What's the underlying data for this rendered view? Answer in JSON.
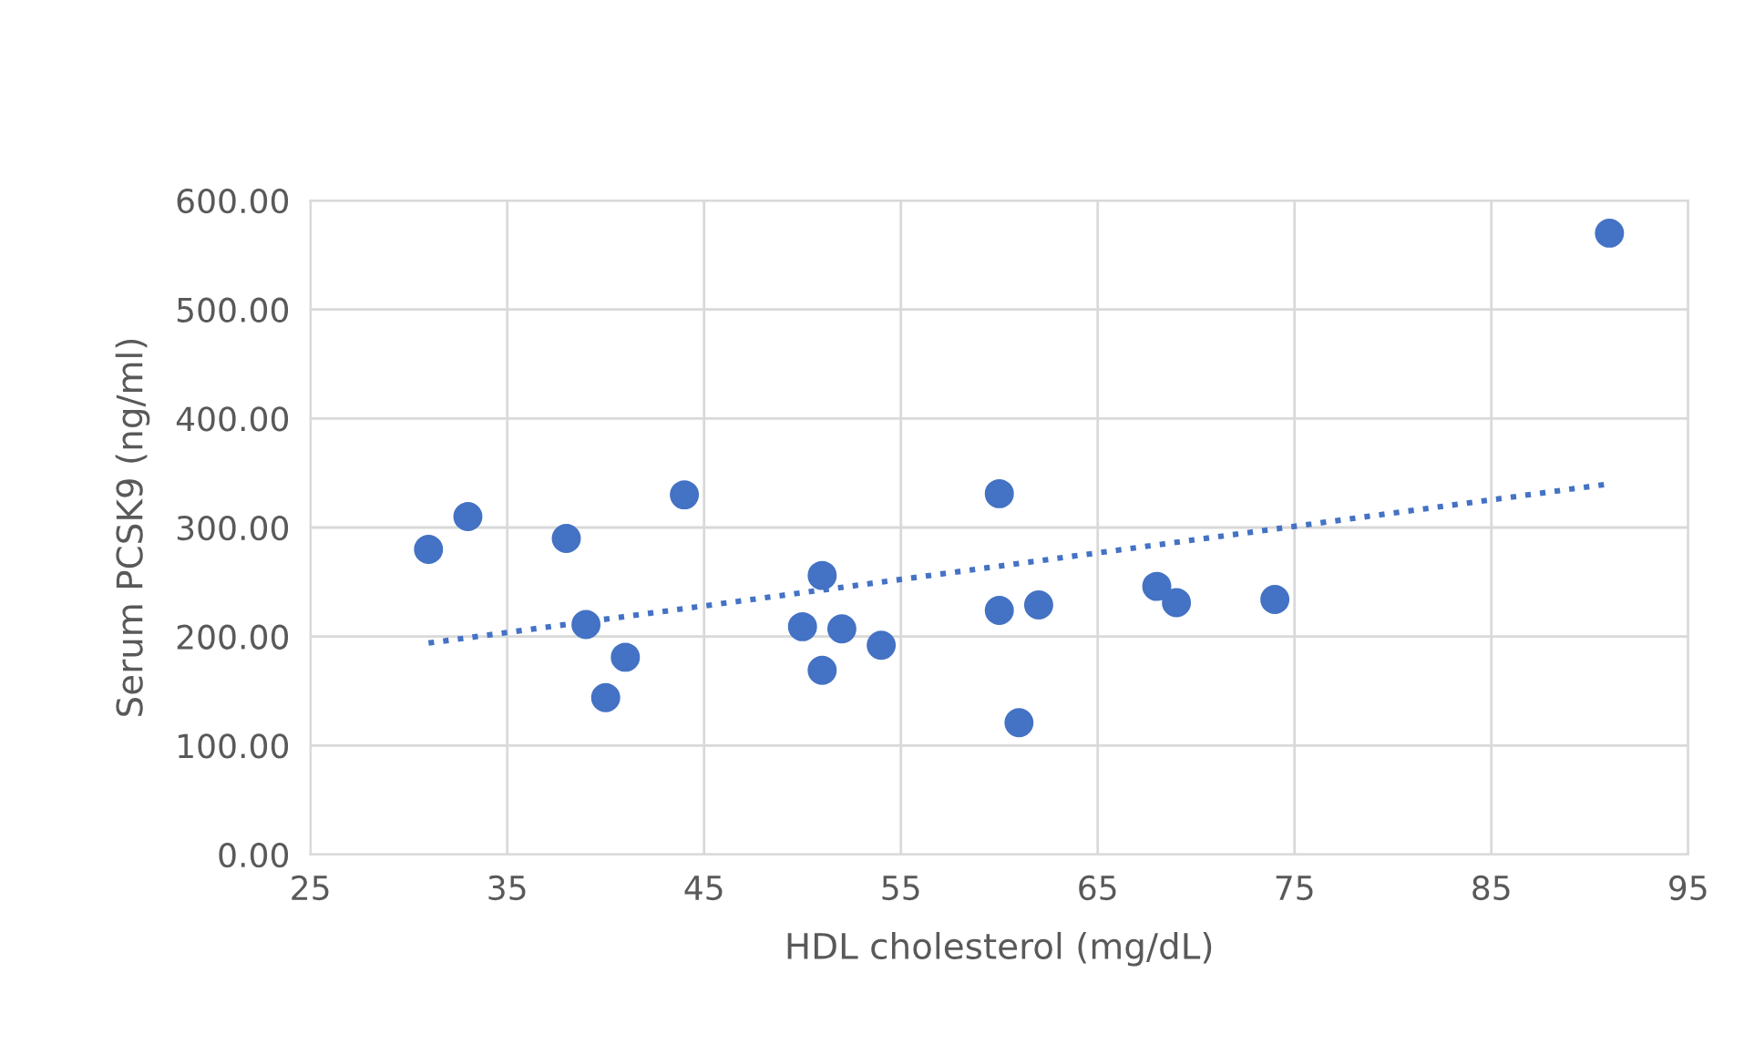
{
  "chart_data": {
    "type": "scatter",
    "xlabel": "HDL cholesterol (mg/dL)",
    "ylabel": "Serum PCSK9 (ng/ml)",
    "xlim": [
      25,
      95
    ],
    "xticks": [
      25,
      35,
      45,
      55,
      65,
      75,
      85,
      95
    ],
    "ylim": [
      0,
      600
    ],
    "yticks": [
      {
        "value": 0,
        "label": "0.00"
      },
      {
        "value": 100,
        "label": "100.00"
      },
      {
        "value": 200,
        "label": "200.00"
      },
      {
        "value": 300,
        "label": "300.00"
      },
      {
        "value": 400,
        "label": "400.00"
      },
      {
        "value": 500,
        "label": "500.00"
      },
      {
        "value": 600,
        "label": "600.00"
      }
    ],
    "grid": true,
    "marker": "circle",
    "series": [
      {
        "color": "#4472c4",
        "x": [
          31,
          33,
          38,
          39,
          41,
          40,
          44,
          50,
          51,
          51,
          52,
          54,
          60,
          60,
          61,
          62,
          68,
          69,
          74,
          91
        ],
        "values": [
          280,
          310,
          290,
          211,
          181,
          144,
          330,
          209,
          256,
          169,
          207,
          192,
          331,
          224,
          121,
          229,
          246,
          231,
          234,
          570
        ]
      },
      {
        "type": "line",
        "color": "#4472c4",
        "line_style": "dotted",
        "marker": "none",
        "x": [
          31,
          91
        ],
        "values": [
          194,
          340
        ]
      }
    ]
  }
}
